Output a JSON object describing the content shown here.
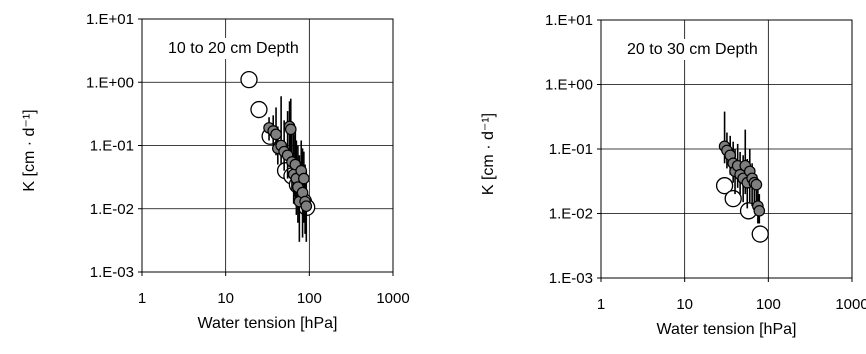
{
  "chart_data": [
    {
      "type": "scatter",
      "annotation": "10 to 20 cm Depth",
      "xlabel": "Water tension [hPa]",
      "ylabel": "K [cm · d⁻¹]",
      "xscale": "log",
      "yscale": "log",
      "xlim": [
        1,
        1000
      ],
      "ylim": [
        0.001,
        10
      ],
      "x_ticks": [
        "1",
        "10",
        "100",
        "1000"
      ],
      "y_ticks": [
        "1.E-03",
        "1.E-02",
        "1.E-01",
        "1.E+00",
        "1.E+01"
      ],
      "grid": true,
      "series": [
        {
          "marker": "open-circle",
          "color": "#ffffff",
          "points": [
            {
              "x": 19,
              "y": 1.1
            },
            {
              "x": 25,
              "y": 0.37
            },
            {
              "x": 34,
              "y": 0.14
            },
            {
              "x": 52,
              "y": 0.04
            },
            {
              "x": 62,
              "y": 0.033
            },
            {
              "x": 72,
              "y": 0.024
            },
            {
              "x": 85,
              "y": 0.013
            },
            {
              "x": 93,
              "y": 0.0105
            }
          ]
        },
        {
          "marker": "filled-circle-with-error-bars",
          "color": "#7f7f7f",
          "points": [
            {
              "x": 33,
              "y": 0.19,
              "y_low": 0.12,
              "y_high": 0.28
            },
            {
              "x": 37,
              "y": 0.17,
              "y_low": 0.1,
              "y_high": 0.3
            },
            {
              "x": 40,
              "y": 0.15,
              "y_low": 0.07,
              "y_high": 0.4
            },
            {
              "x": 42,
              "y": 0.09,
              "y_low": 0.05,
              "y_high": 0.2
            },
            {
              "x": 46,
              "y": 0.1,
              "y_low": 0.05,
              "y_high": 0.6
            },
            {
              "x": 50,
              "y": 0.08,
              "y_low": 0.04,
              "y_high": 0.25
            },
            {
              "x": 55,
              "y": 0.07,
              "y_low": 0.03,
              "y_high": 0.35
            },
            {
              "x": 58,
              "y": 0.2,
              "y_low": 0.08,
              "y_high": 0.5
            },
            {
              "x": 60,
              "y": 0.18,
              "y_low": 0.06,
              "y_high": 0.55
            },
            {
              "x": 62,
              "y": 0.055,
              "y_low": 0.02,
              "y_high": 0.2
            },
            {
              "x": 65,
              "y": 0.035,
              "y_low": 0.012,
              "y_high": 0.15
            },
            {
              "x": 68,
              "y": 0.05,
              "y_low": 0.015,
              "y_high": 0.2
            },
            {
              "x": 70,
              "y": 0.03,
              "y_low": 0.008,
              "y_high": 0.12
            },
            {
              "x": 73,
              "y": 0.022,
              "y_low": 0.006,
              "y_high": 0.1
            },
            {
              "x": 76,
              "y": 0.013,
              "y_low": 0.003,
              "y_high": 0.07
            },
            {
              "x": 80,
              "y": 0.04,
              "y_low": 0.012,
              "y_high": 0.12
            },
            {
              "x": 83,
              "y": 0.018,
              "y_low": 0.0035,
              "y_high": 0.09
            },
            {
              "x": 86,
              "y": 0.03,
              "y_low": 0.006,
              "y_high": 0.08
            },
            {
              "x": 89,
              "y": 0.013,
              "y_low": 0.004,
              "y_high": 0.05
            },
            {
              "x": 92,
              "y": 0.011,
              "y_low": 0.003,
              "y_high": 0.04
            }
          ]
        }
      ]
    },
    {
      "type": "scatter",
      "annotation": "20 to 30 cm Depth",
      "xlabel": "Water tension [hPa]",
      "ylabel": "K [cm · d⁻¹]",
      "xscale": "log",
      "yscale": "log",
      "xlim": [
        1,
        1000
      ],
      "ylim": [
        0.001,
        10
      ],
      "x_ticks": [
        "1",
        "10",
        "100",
        "1000"
      ],
      "y_ticks": [
        "1.E-03",
        "1.E-02",
        "1.E-01",
        "1.E+00",
        "1.E+01"
      ],
      "grid": true,
      "series": [
        {
          "marker": "open-circle",
          "color": "#ffffff",
          "points": [
            {
              "x": 30,
              "y": 0.027
            },
            {
              "x": 38,
              "y": 0.017
            },
            {
              "x": 58,
              "y": 0.011
            },
            {
              "x": 80,
              "y": 0.0048
            }
          ]
        },
        {
          "marker": "filled-circle-with-error-bars",
          "color": "#7f7f7f",
          "points": [
            {
              "x": 30,
              "y": 0.11,
              "y_low": 0.06,
              "y_high": 0.38
            },
            {
              "x": 32,
              "y": 0.095,
              "y_low": 0.05,
              "y_high": 0.18
            },
            {
              "x": 35,
              "y": 0.08,
              "y_low": 0.04,
              "y_high": 0.16
            },
            {
              "x": 38,
              "y": 0.06,
              "y_low": 0.03,
              "y_high": 0.13
            },
            {
              "x": 40,
              "y": 0.045,
              "y_low": 0.02,
              "y_high": 0.1
            },
            {
              "x": 43,
              "y": 0.055,
              "y_low": 0.025,
              "y_high": 0.12
            },
            {
              "x": 46,
              "y": 0.04,
              "y_low": 0.02,
              "y_high": 0.09
            },
            {
              "x": 50,
              "y": 0.035,
              "y_low": 0.015,
              "y_high": 0.08
            },
            {
              "x": 53,
              "y": 0.055,
              "y_low": 0.02,
              "y_high": 0.2
            },
            {
              "x": 56,
              "y": 0.03,
              "y_low": 0.012,
              "y_high": 0.07
            },
            {
              "x": 60,
              "y": 0.045,
              "y_low": 0.015,
              "y_high": 0.1
            },
            {
              "x": 64,
              "y": 0.035,
              "y_low": 0.013,
              "y_high": 0.06
            },
            {
              "x": 68,
              "y": 0.03,
              "y_low": 0.012,
              "y_high": 0.05
            },
            {
              "x": 72,
              "y": 0.028,
              "y_low": 0.012,
              "y_high": 0.04
            },
            {
              "x": 75,
              "y": 0.013,
              "y_low": 0.007,
              "y_high": 0.025
            },
            {
              "x": 78,
              "y": 0.011,
              "y_low": 0.007,
              "y_high": 0.02
            }
          ]
        }
      ]
    }
  ]
}
